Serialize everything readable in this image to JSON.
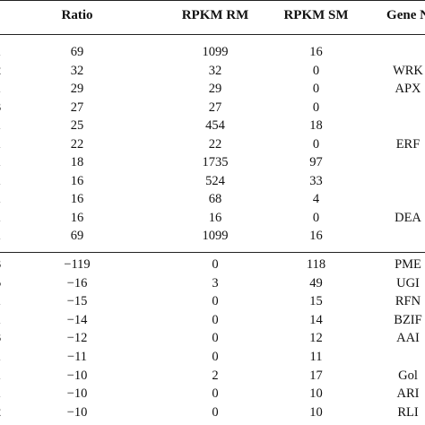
{
  "headers": {
    "ratio": "Ratio",
    "rpkm_rm": "RPKM RM",
    "rpkm_sm": "RPKM SM",
    "gene": "Gene N"
  },
  "rows_up": [
    {
      "id": "1",
      "ratio": "69",
      "rm": "1099",
      "sm": "16",
      "gene": ""
    },
    {
      "id": "2",
      "ratio": "32",
      "rm": "32",
      "sm": "0",
      "gene": "WRK"
    },
    {
      "id": "1",
      "ratio": "29",
      "rm": "29",
      "sm": "0",
      "gene": "APX"
    },
    {
      "id": "3",
      "ratio": "27",
      "rm": "27",
      "sm": "0",
      "gene": ""
    },
    {
      "id": "1",
      "ratio": "25",
      "rm": "454",
      "sm": "18",
      "gene": ""
    },
    {
      "id": "1",
      "ratio": "22",
      "rm": "22",
      "sm": "0",
      "gene": "ERF"
    },
    {
      "id": "1",
      "ratio": "18",
      "rm": "1735",
      "sm": "97",
      "gene": ""
    },
    {
      "id": "1",
      "ratio": "16",
      "rm": "524",
      "sm": "33",
      "gene": ""
    },
    {
      "id": "1",
      "ratio": "16",
      "rm": "68",
      "sm": "4",
      "gene": ""
    },
    {
      "id": "1",
      "ratio": "16",
      "rm": "16",
      "sm": "0",
      "gene": "DEA"
    },
    {
      "id": "1",
      "ratio": "69",
      "rm": "1099",
      "sm": "16",
      "gene": ""
    }
  ],
  "rows_down": [
    {
      "id": "3",
      "ratio": "−119",
      "rm": "0",
      "sm": "118",
      "gene": "PME"
    },
    {
      "id": "5",
      "ratio": "−16",
      "rm": "3",
      "sm": "49",
      "gene": "UGI"
    },
    {
      "id": "1",
      "ratio": "−15",
      "rm": "0",
      "sm": "15",
      "gene": "RFN"
    },
    {
      "id": "1",
      "ratio": "−14",
      "rm": "0",
      "sm": "14",
      "gene": "BZIF"
    },
    {
      "id": "3",
      "ratio": "−12",
      "rm": "0",
      "sm": "12",
      "gene": "AAI"
    },
    {
      "id": "1",
      "ratio": "−11",
      "rm": "0",
      "sm": "11",
      "gene": ""
    },
    {
      "id": "1",
      "ratio": "−10",
      "rm": "2",
      "sm": "17",
      "gene": "Gol"
    },
    {
      "id": "1",
      "ratio": "−10",
      "rm": "0",
      "sm": "10",
      "gene": "ARI"
    },
    {
      "id": "2",
      "ratio": "−10",
      "rm": "0",
      "sm": "10",
      "gene": "RLI"
    }
  ]
}
